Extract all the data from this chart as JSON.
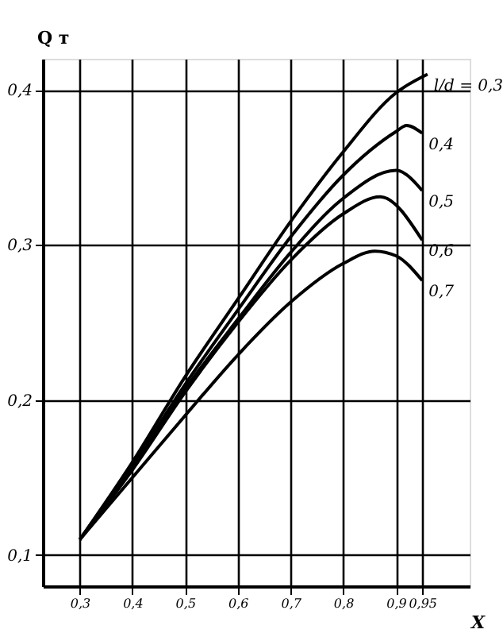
{
  "chart_data": {
    "type": "line",
    "xlabel": "X",
    "ylabel": "Q т",
    "xlim": [
      0.23,
      1.04
    ],
    "ylim": [
      0.08,
      0.42
    ],
    "xticks": [
      {
        "value": 0.3,
        "label": "0,3"
      },
      {
        "value": 0.4,
        "label": "0,4"
      },
      {
        "value": 0.5,
        "label": "0,5"
      },
      {
        "value": 0.6,
        "label": "0,6"
      },
      {
        "value": 0.7,
        "label": "0,7"
      },
      {
        "value": 0.8,
        "label": "0,8"
      },
      {
        "value": 0.9,
        "label": "0,9"
      },
      {
        "value": 0.95,
        "label": "0,95"
      }
    ],
    "yticks": [
      {
        "value": 0.1,
        "label": "0,1"
      },
      {
        "value": 0.2,
        "label": "0,2"
      },
      {
        "value": 0.3,
        "label": "0,3"
      },
      {
        "value": 0.4,
        "label": "0,4"
      }
    ],
    "grid": true,
    "legend": false,
    "marker": "none",
    "line_style": "solid",
    "series": [
      {
        "name": "l/d = 0,3",
        "color": "#000000",
        "x": [
          0.3,
          0.4,
          0.5,
          0.6,
          0.7,
          0.8,
          0.9,
          0.96
        ],
        "values": [
          0.11,
          0.16,
          0.215,
          0.265,
          0.315,
          0.36,
          0.398,
          0.41
        ]
      },
      {
        "name": "0,4",
        "color": "#000000",
        "x": [
          0.3,
          0.4,
          0.5,
          0.6,
          0.7,
          0.8,
          0.9,
          0.92,
          0.95
        ],
        "values": [
          0.11,
          0.158,
          0.21,
          0.258,
          0.305,
          0.345,
          0.373,
          0.377,
          0.372
        ]
      },
      {
        "name": "0,5",
        "color": "#000000",
        "x": [
          0.3,
          0.4,
          0.5,
          0.6,
          0.7,
          0.8,
          0.9,
          0.95
        ],
        "values": [
          0.11,
          0.156,
          0.207,
          0.252,
          0.295,
          0.33,
          0.348,
          0.335
        ]
      },
      {
        "name": "0,6",
        "color": "#000000",
        "x": [
          0.3,
          0.4,
          0.5,
          0.6,
          0.7,
          0.8,
          0.87,
          0.95
        ],
        "values": [
          0.11,
          0.155,
          0.205,
          0.25,
          0.29,
          0.32,
          0.331,
          0.303
        ]
      },
      {
        "name": "0,7",
        "color": "#000000",
        "x": [
          0.3,
          0.4,
          0.5,
          0.6,
          0.7,
          0.8,
          0.86,
          0.9,
          0.95
        ],
        "values": [
          0.11,
          0.15,
          0.19,
          0.229,
          0.263,
          0.288,
          0.296,
          0.293,
          0.277
        ]
      }
    ]
  }
}
